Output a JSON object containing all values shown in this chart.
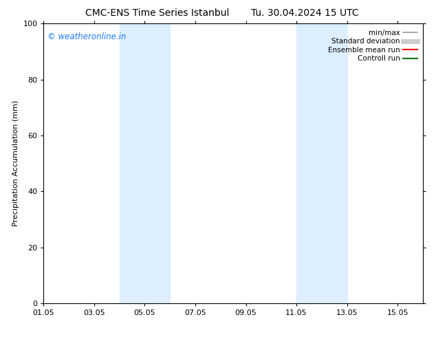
{
  "title_left": "CMC-ENS Time Series Istanbul",
  "title_right": "Tu. 30.04.2024 15 UTC",
  "ylabel": "Precipitation Accumulation (mm)",
  "ylim": [
    0,
    100
  ],
  "yticks": [
    0,
    20,
    40,
    60,
    80,
    100
  ],
  "xtick_labels": [
    "01.05",
    "03.05",
    "05.05",
    "07.05",
    "09.05",
    "11.05",
    "13.05",
    "15.05"
  ],
  "xtick_positions": [
    1,
    3,
    5,
    7,
    9,
    11,
    13,
    15
  ],
  "xlim": [
    1,
    16
  ],
  "shaded_regions": [
    {
      "xmin": 4.0,
      "xmax": 6.0,
      "color": "#ddeeff"
    },
    {
      "xmin": 11.0,
      "xmax": 13.0,
      "color": "#ddeeff"
    }
  ],
  "watermark_text": "© weatheronline.in",
  "watermark_color": "#1a75ff",
  "legend_entries": [
    {
      "label": "min/max",
      "color": "#999999",
      "lw": 1.2
    },
    {
      "label": "Standard deviation",
      "color": "#cccccc",
      "lw": 5
    },
    {
      "label": "Ensemble mean run",
      "color": "#ff0000",
      "lw": 1.5
    },
    {
      "label": "Controll run",
      "color": "#007700",
      "lw": 1.5
    }
  ],
  "bg_color": "#ffffff",
  "title_fontsize": 10,
  "axis_label_fontsize": 8,
  "tick_fontsize": 8,
  "legend_fontsize": 7.5,
  "watermark_fontsize": 8.5
}
